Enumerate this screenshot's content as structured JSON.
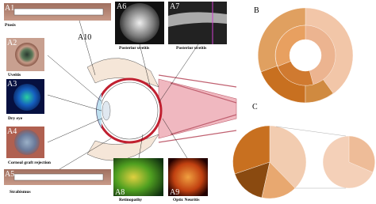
{
  "panels": {
    "a1": {
      "label": "A1",
      "caption": "Ptosis"
    },
    "a2": {
      "label": "A2",
      "caption": "Uveitis"
    },
    "a3": {
      "label": "A3",
      "caption": "Dry eye"
    },
    "a4": {
      "label": "A4",
      "caption": "Corneal graft rejection"
    },
    "a5": {
      "label": "A5",
      "caption": "Strabismus"
    },
    "a6": {
      "label": "A6",
      "caption": "Posterior uveitis"
    },
    "a7": {
      "label": "A7",
      "caption": "Posterior uveitis"
    },
    "a8": {
      "label": "A8",
      "caption": "Retinopathy"
    },
    "a9": {
      "label": "A9",
      "caption": "Optic Neuritis"
    },
    "a10": {
      "label": "A10"
    },
    "b": {
      "label": "B"
    },
    "c": {
      "label": "C"
    }
  }
}
